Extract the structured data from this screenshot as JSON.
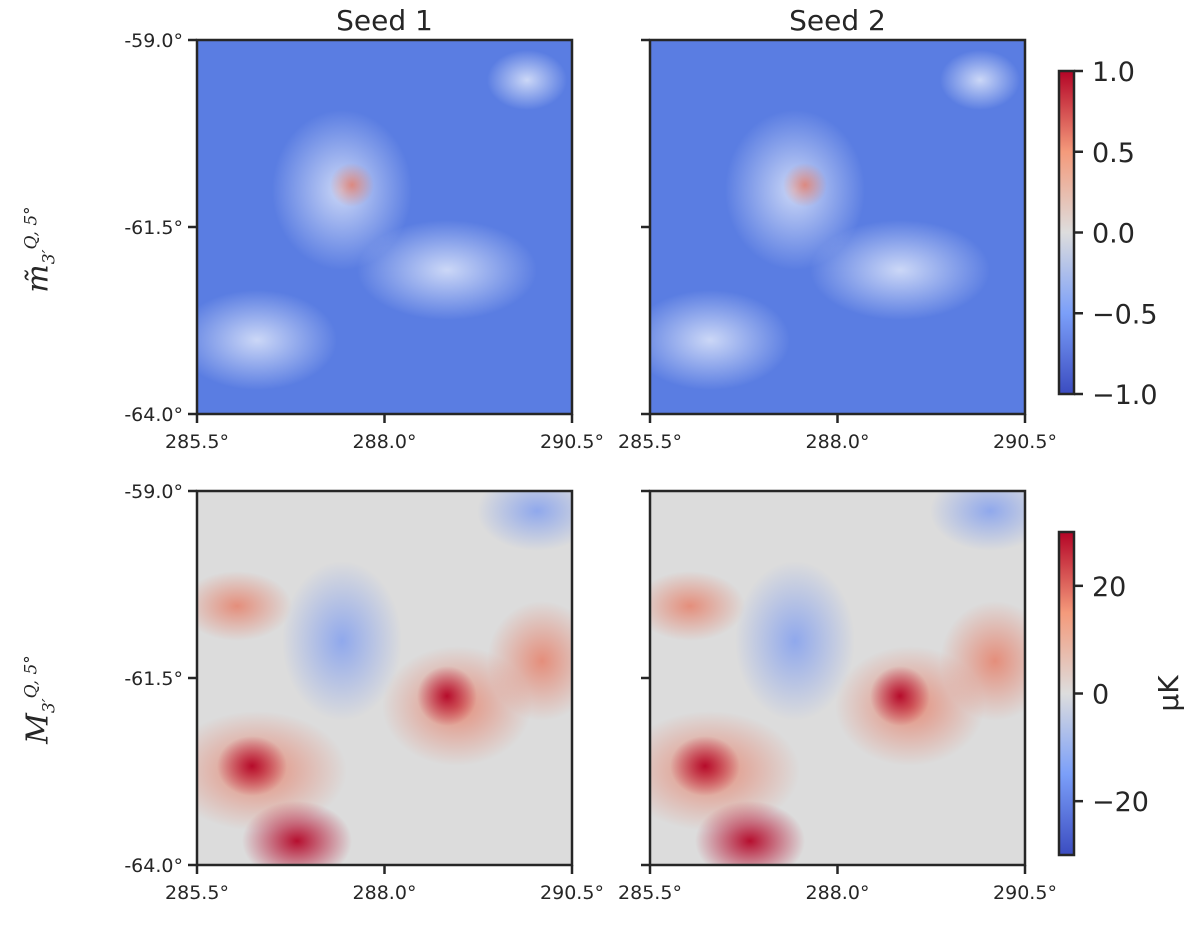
{
  "chart_data": {
    "type": "heatmap",
    "columns": [
      "Seed 1",
      "Seed 2"
    ],
    "rows": [
      {
        "label_base": "m̃",
        "label_sub": "3′",
        "label_sup": "Q, 5°",
        "colorbar": {
          "min": -1.0,
          "max": 1.0,
          "ticks": [
            "1.0",
            "0.5",
            "0.0",
            "−0.5",
            "−1.0"
          ],
          "tick_values": [
            1.0,
            0.5,
            0.0,
            -0.5,
            -1.0
          ],
          "unit": ""
        }
      },
      {
        "label_base": "M",
        "label_sub": "3′",
        "label_sup": "Q, 5°",
        "colorbar": {
          "min": -30,
          "max": 30,
          "ticks": [
            "20",
            "0",
            "−20"
          ],
          "tick_values": [
            20,
            0,
            -20
          ],
          "unit": "μK"
        }
      }
    ],
    "x_ticks": [
      "285.5°",
      "288.0°",
      "290.5°"
    ],
    "x_tick_values": [
      285.5,
      288.0,
      290.5
    ],
    "y_ticks": [
      "-59.0°",
      "-61.5°",
      "-64.0°"
    ],
    "y_tick_values": [
      -59.0,
      -61.5,
      -64.0
    ],
    "xlim": [
      285.5,
      290.5
    ],
    "ylim": [
      -64.0,
      -59.0
    ],
    "colormap": "coolwarm",
    "colors": {
      "low": "#3b4cc0",
      "mid": "#dddddd",
      "high": "#b40426"
    }
  }
}
